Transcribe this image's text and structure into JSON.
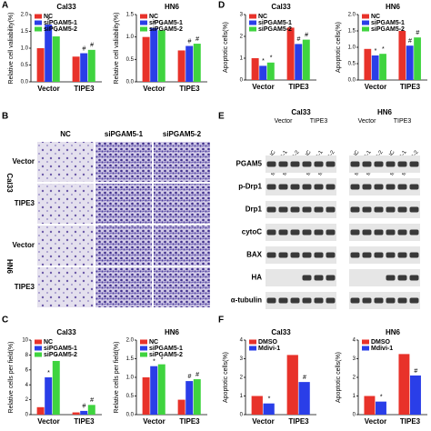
{
  "chart_data": [
    {
      "type": "bar",
      "title": "Cal33",
      "ylabel": "Relative cell valiability(%)",
      "categories": [
        "Vector",
        "TIPE3"
      ],
      "legend": "upper left",
      "series": [
        {
          "name": "NC",
          "color": "#e8322a",
          "values": [
            1.0,
            0.75
          ],
          "sig": [
            null,
            null
          ]
        },
        {
          "name": "siPGAM5-1",
          "color": "#2a3ee8",
          "values": [
            1.7,
            0.85
          ],
          "sig": [
            "*",
            "#"
          ]
        },
        {
          "name": "siPGAM5-2",
          "color": "#3fd43f",
          "values": [
            1.35,
            0.95
          ],
          "sig": [
            "*",
            "#"
          ]
        }
      ],
      "ylim": [
        0,
        2
      ],
      "yticks": [
        {
          "value": 0,
          "label": "0.0"
        },
        {
          "value": 0.5,
          "label": "0.5"
        },
        {
          "value": 1,
          "label": "1.0"
        },
        {
          "value": 1.5,
          "label": "1.5"
        },
        {
          "value": 2,
          "label": "2.0"
        }
      ]
    },
    {
      "type": "bar",
      "title": "HN6",
      "ylabel": "Relative cell valiability(%)",
      "categories": [
        "Vector",
        "TIPE3"
      ],
      "legend": "upper left",
      "series": [
        {
          "name": "NC",
          "color": "#e8322a",
          "values": [
            1.0,
            0.7
          ],
          "sig": [
            null,
            null
          ]
        },
        {
          "name": "siPGAM5-1",
          "color": "#2a3ee8",
          "values": [
            1.2,
            0.8
          ],
          "sig": [
            "*",
            "#"
          ]
        },
        {
          "name": "siPGAM5-2",
          "color": "#3fd43f",
          "values": [
            1.15,
            0.85
          ],
          "sig": [
            "*",
            "#"
          ]
        }
      ],
      "ylim": [
        0,
        1.5
      ],
      "yticks": [
        {
          "value": 0,
          "label": "0.0"
        },
        {
          "value": 0.5,
          "label": "0.5"
        },
        {
          "value": 1,
          "label": "1.0"
        },
        {
          "value": 1.5,
          "label": "1.5"
        }
      ]
    },
    {
      "type": "bar",
      "title": "Cal33",
      "ylabel": "Apoptotic cells(%)",
      "categories": [
        "Vector",
        "TIPE3"
      ],
      "legend": "upper left",
      "series": [
        {
          "name": "NC",
          "color": "#e8322a",
          "values": [
            1.0,
            2.4
          ],
          "sig": [
            null,
            null
          ]
        },
        {
          "name": "siPGAM5-1",
          "color": "#2a3ee8",
          "values": [
            0.65,
            1.65
          ],
          "sig": [
            "*",
            "#"
          ]
        },
        {
          "name": "siPGAM5-2",
          "color": "#3fd43f",
          "values": [
            0.8,
            1.85
          ],
          "sig": [
            "*",
            "#"
          ]
        }
      ],
      "ylim": [
        0,
        3
      ],
      "yticks": [
        0,
        1,
        2,
        3
      ]
    },
    {
      "type": "bar",
      "title": "HN6",
      "ylabel": "Apoptotic cells(%)",
      "categories": [
        "Vector",
        "TIPE3"
      ],
      "legend": "upper left",
      "series": [
        {
          "name": "NC",
          "color": "#e8322a",
          "values": [
            0.95,
            1.5
          ],
          "sig": [
            null,
            null
          ]
        },
        {
          "name": "siPGAM5-1",
          "color": "#2a3ee8",
          "values": [
            0.75,
            1.05
          ],
          "sig": [
            "*",
            "#"
          ]
        },
        {
          "name": "siPGAM5-2",
          "color": "#3fd43f",
          "values": [
            0.8,
            1.3
          ],
          "sig": [
            "*",
            "#"
          ]
        }
      ],
      "ylim": [
        0,
        2
      ],
      "yticks": [
        {
          "value": 0,
          "label": "0.0"
        },
        {
          "value": 0.5,
          "label": "0.5"
        },
        {
          "value": 1,
          "label": "1.0"
        },
        {
          "value": 1.5,
          "label": "1.5"
        },
        {
          "value": 2,
          "label": "2.0"
        }
      ]
    },
    {
      "type": "bar",
      "title": "Cal33",
      "ylabel": "Relative cells per field(%)",
      "categories": [
        "Vector",
        "TIPE3"
      ],
      "legend": "upper left",
      "series": [
        {
          "name": "NC",
          "color": "#e8322a",
          "values": [
            1.0,
            0.3
          ],
          "sig": [
            null,
            null
          ]
        },
        {
          "name": "siPGAM5-1",
          "color": "#2a3ee8",
          "values": [
            5.0,
            0.5
          ],
          "sig": [
            "*",
            "#"
          ]
        },
        {
          "name": "siPGAM5-2",
          "color": "#3fd43f",
          "values": [
            7.2,
            1.3
          ],
          "sig": [
            "*",
            "#"
          ]
        }
      ],
      "ylim": [
        0,
        10
      ],
      "yticks": [
        0,
        2,
        4,
        6,
        8,
        10
      ]
    },
    {
      "type": "bar",
      "title": "HN6",
      "ylabel": "Relative cells per field(%)",
      "categories": [
        "Vector",
        "TIPE3"
      ],
      "legend": "upper left",
      "series": [
        {
          "name": "NC",
          "color": "#e8322a",
          "values": [
            1.0,
            0.4
          ],
          "sig": [
            null,
            null
          ]
        },
        {
          "name": "siPGAM5-1",
          "color": "#2a3ee8",
          "values": [
            1.3,
            0.9
          ],
          "sig": [
            "*",
            "#"
          ]
        },
        {
          "name": "siPGAM5-2",
          "color": "#3fd43f",
          "values": [
            1.35,
            0.95
          ],
          "sig": [
            "*",
            "#"
          ]
        }
      ],
      "ylim": [
        0,
        2
      ],
      "yticks": [
        {
          "value": 0,
          "label": "0.0"
        },
        {
          "value": 0.5,
          "label": "0.5"
        },
        {
          "value": 1,
          "label": "1.0"
        },
        {
          "value": 1.5,
          "label": "1.5"
        },
        {
          "value": 2,
          "label": "2.0"
        }
      ]
    },
    {
      "type": "bar",
      "title": "Cal33",
      "ylabel": "Apoptotic cells(%)",
      "categories": [
        "Vector",
        "TIPE3"
      ],
      "legend": "upper left",
      "series": [
        {
          "name": "DMSO",
          "color": "#e8322a",
          "values": [
            1.0,
            3.2
          ],
          "sig": [
            null,
            null
          ]
        },
        {
          "name": "Mdivi-1",
          "color": "#2a3ee8",
          "values": [
            0.6,
            1.75
          ],
          "sig": [
            "*",
            "#"
          ]
        }
      ],
      "ylim": [
        0,
        4
      ],
      "yticks": [
        0,
        1,
        2,
        3,
        4
      ]
    },
    {
      "type": "bar",
      "title": "HN6",
      "ylabel": "Apoptotic cells(%)",
      "categories": [
        "Vector",
        "TIPE3"
      ],
      "legend": "upper left",
      "series": [
        {
          "name": "DMSO",
          "color": "#e8322a",
          "values": [
            1.0,
            3.25
          ],
          "sig": [
            null,
            null
          ]
        },
        {
          "name": "Mdivi-1",
          "color": "#2a3ee8",
          "values": [
            0.7,
            2.1
          ],
          "sig": [
            "*",
            "#"
          ]
        }
      ],
      "ylim": [
        0,
        4
      ],
      "yticks": [
        0,
        1,
        2,
        3,
        4
      ]
    }
  ],
  "panels": {
    "letters": [
      "A",
      "B",
      "C",
      "D",
      "E",
      "F"
    ],
    "b": {
      "columns": [
        "NC",
        "siPGAM5-1",
        "siPGAM5-2"
      ],
      "groups": [
        {
          "name": "Cal33",
          "rows": [
            "Vector",
            "TIPE3"
          ]
        },
        {
          "name": "HN6",
          "rows": [
            "Vector",
            "TIPE3"
          ]
        }
      ]
    },
    "e": {
      "cells": [
        "Cal33",
        "HN6"
      ],
      "conditions": [
        "Vector",
        "TIPE3"
      ],
      "lanes": [
        "NC",
        "siPGAM5-1",
        "siPGAM5-2"
      ],
      "proteins": [
        "PGAM5",
        "p-Drp1",
        "Drp1",
        "cytoC",
        "BAX",
        "HA",
        "α-tubulin"
      ]
    }
  }
}
